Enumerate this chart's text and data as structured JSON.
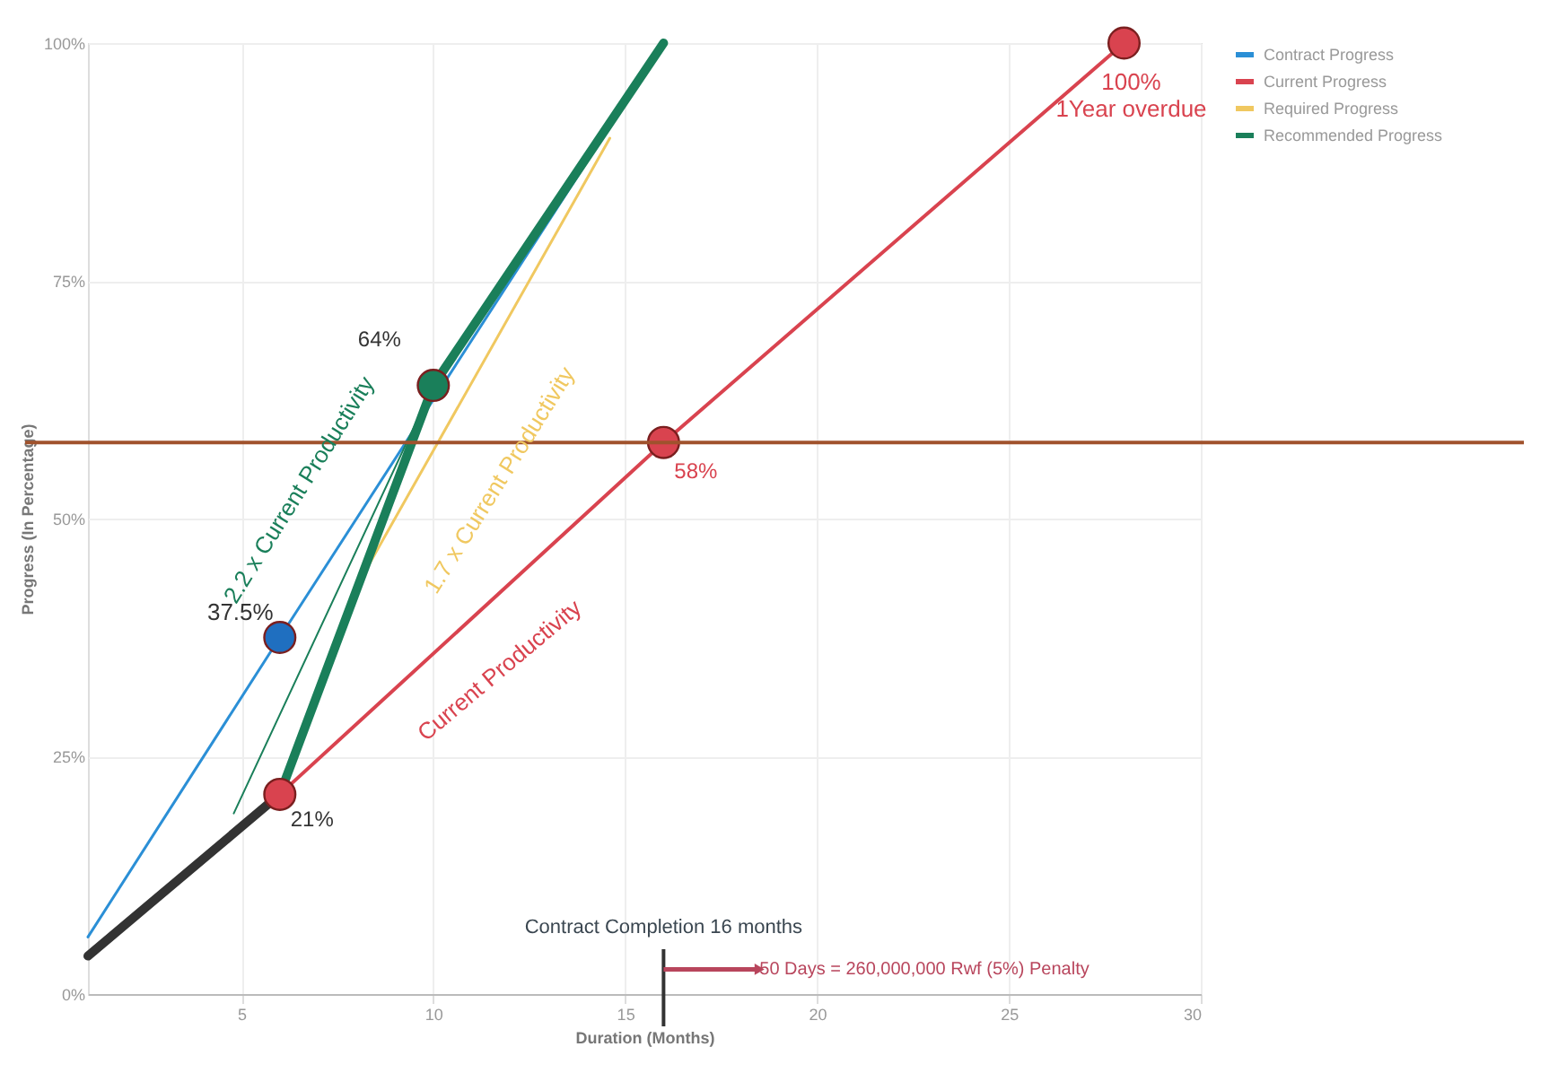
{
  "chart_data": {
    "type": "line",
    "xlabel": "Duration (Months)",
    "ylabel": "Progress (In Percentage)",
    "xlim": [
      1,
      30
    ],
    "xticks": [
      5,
      10,
      15,
      20,
      25,
      30
    ],
    "ylim": [
      0,
      100
    ],
    "yticks": [
      {
        "value": 0,
        "label": "0%"
      },
      {
        "value": 25,
        "label": "25%"
      },
      {
        "value": 50,
        "label": "50%"
      },
      {
        "value": 75,
        "label": "75%"
      },
      {
        "value": 100,
        "label": "100%"
      }
    ],
    "grid": true,
    "legend": "top right",
    "line_style": "solid",
    "series": [
      {
        "name": "Contract Progress",
        "color": "#2b8fd6",
        "x": [
          1,
          6,
          16
        ],
        "values": [
          6,
          37.5,
          100
        ]
      },
      {
        "name": "Current Progress",
        "color": "#d9434f",
        "x": [
          6,
          16,
          28
        ],
        "values": [
          21,
          58,
          100
        ]
      },
      {
        "name": "Required Progress",
        "color": "#f0c860",
        "x": [
          8.3,
          14.6
        ],
        "values": [
          45,
          90
        ]
      },
      {
        "name": "Recommended Progress",
        "color": "#1a7f5a",
        "x": [
          6,
          10,
          16
        ],
        "values": [
          21,
          64,
          100
        ]
      },
      {
        "color": "#1a7f5a",
        "x": [
          4.8,
          10
        ],
        "values": [
          19,
          64
        ]
      },
      {
        "color": "#333333",
        "x": [
          1,
          6
        ],
        "values": [
          4,
          21
        ]
      },
      {
        "type": "scatter",
        "color": "#1f6fc0",
        "marker": "circle",
        "x": [
          6
        ],
        "values": [
          37.5
        ]
      },
      {
        "type": "scatter",
        "color": "#d9434f",
        "marker": "circle",
        "x": [
          6,
          16,
          28
        ],
        "values": [
          21,
          58,
          100
        ]
      },
      {
        "type": "scatter",
        "color": "#1a7f5a",
        "marker": "circle",
        "x": [
          10
        ],
        "values": [
          64
        ]
      }
    ],
    "ref_lines": [
      {
        "axis": "y",
        "value": 58,
        "color": "#a0522d"
      },
      {
        "axis": "x",
        "value": 16,
        "label": "Contract Completion 16 months",
        "color": "#333333"
      }
    ],
    "annotations": [
      {
        "text": "37.5%",
        "x": 6,
        "y": 37.5
      },
      {
        "text": "21%",
        "x": 6,
        "y": 21
      },
      {
        "text": "64%",
        "x": 10,
        "y": 64
      },
      {
        "text": "58%",
        "x": 16,
        "y": 58
      },
      {
        "text": "100%\n1Year overdue",
        "x": 28,
        "y": 100
      },
      "2.2 x Current Productivity",
      "1.7 x Current Productivity",
      "Current Productivity",
      {
        "text": "50 Days = 260,000,000 Rwf (5%) Penalty",
        "x": 18.5,
        "y": 2.6
      }
    ]
  }
}
